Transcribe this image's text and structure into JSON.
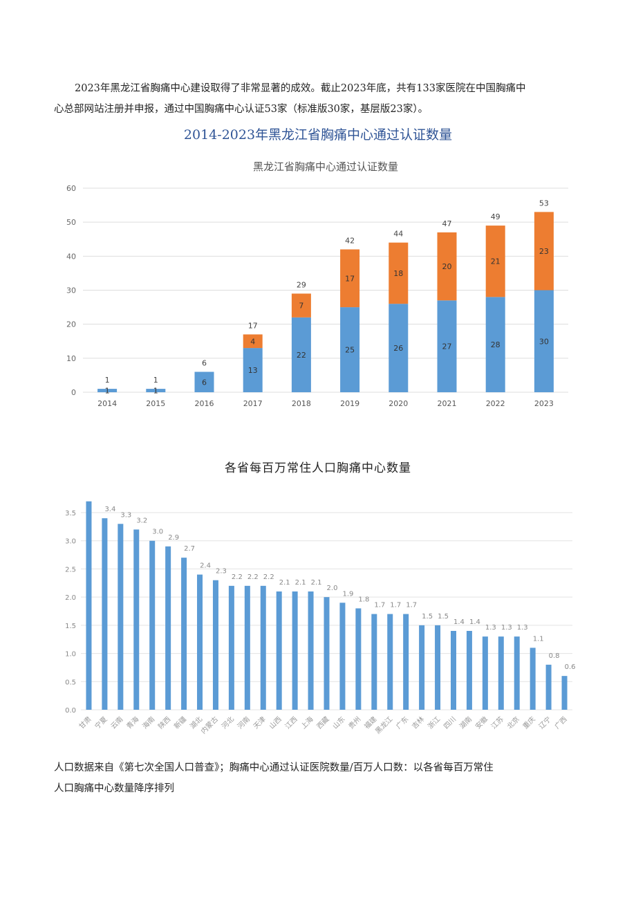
{
  "intro": {
    "line1": "2023年黑龙江省胸痛中心建设取得了非常显著的成效。截止2023年底，共有133家医院在中国胸痛中",
    "line2": "心总部网站注册并申报，通过中国胸痛中心认证53家（标准版30家，基层版23家）。"
  },
  "heading": "2014-2023年黑龙江省胸痛中心通过认证数量",
  "chart2_heading": "各省每百万常住人口胸痛中心数量",
  "footer": {
    "line1": "人口数据来自《第七次全国人口普查》；胸痛中心通过认证医院数量/百万人口数：以各省每百万常住",
    "line2": "人口胸痛中心数量降序排列"
  },
  "chart_data": [
    {
      "type": "bar",
      "stacked": true,
      "title": "黑龙江省胸痛中心通过认证数量",
      "categories": [
        "2014",
        "2015",
        "2016",
        "2017",
        "2018",
        "2019",
        "2020",
        "2021",
        "2022",
        "2023"
      ],
      "series": [
        {
          "values": [
            1,
            1,
            6,
            13,
            22,
            25,
            26,
            27,
            28,
            30
          ],
          "color": "#5b9bd5"
        },
        {
          "values": [
            0,
            0,
            0,
            4,
            7,
            17,
            18,
            20,
            21,
            23
          ],
          "color": "#ed7d31"
        }
      ],
      "totals": [
        1,
        1,
        6,
        17,
        29,
        42,
        44,
        47,
        49,
        53
      ],
      "ylim": [
        0,
        60
      ],
      "yticks": [
        0,
        10,
        20,
        30,
        40,
        50,
        60
      ],
      "grid": true,
      "legend": "none"
    },
    {
      "type": "bar",
      "title": "",
      "categories": [
        "甘肃",
        "宁夏",
        "云南",
        "青海",
        "海南",
        "陕西",
        "新疆",
        "湖北",
        "内蒙古",
        "河北",
        "河南",
        "天津",
        "山西",
        "江西",
        "上海",
        "西藏",
        "山东",
        "贵州",
        "福建",
        "黑龙江",
        "广东",
        "吉林",
        "浙江",
        "四川",
        "湖南",
        "安徽",
        "江苏",
        "北京",
        "重庆",
        "辽宁",
        "广西"
      ],
      "values": [
        3.7,
        3.4,
        3.3,
        3.2,
        3.0,
        2.9,
        2.7,
        2.4,
        2.3,
        2.2,
        2.2,
        2.2,
        2.1,
        2.1,
        2.1,
        2.0,
        1.9,
        1.8,
        1.7,
        1.7,
        1.7,
        1.5,
        1.5,
        1.4,
        1.4,
        1.3,
        1.3,
        1.3,
        1.1,
        0.8,
        0.6
      ],
      "data_labels": [
        "",
        "3.4",
        "3.3",
        "3.2",
        "3.0",
        "2.9",
        "2.7",
        "2.4",
        "2.3",
        "2.2",
        "2.2",
        "2.2",
        "2.1",
        "2.1",
        "2.1",
        "2.0",
        "1.9",
        "1.8",
        "1.7",
        "1.7",
        "1.7",
        "1.5",
        "1.5",
        "1.4",
        "1.4",
        "1.3",
        "1.3",
        "1.3",
        "1.1",
        "0.8",
        "0.6"
      ],
      "color": "#5b9bd5",
      "ylim": [
        0,
        3.5
      ],
      "yticks": [
        "0.0",
        "0.5",
        "1.0",
        "1.5",
        "2.0",
        "2.5",
        "3.0",
        "3.5"
      ],
      "grid": true,
      "legend": "none"
    }
  ]
}
